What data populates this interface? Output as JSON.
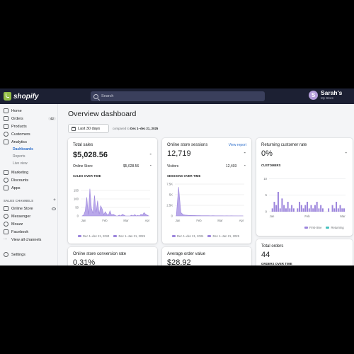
{
  "app": {
    "logo_text": "shopify",
    "search_placeholder": "Search",
    "store_initial": "S",
    "store_name": "Sarah's",
    "store_sub": "My Store"
  },
  "sidebar": {
    "items": [
      {
        "label": "Home"
      },
      {
        "label": "Orders",
        "badge": "42"
      },
      {
        "label": "Products"
      },
      {
        "label": "Customers"
      },
      {
        "label": "Analytics"
      }
    ],
    "analytics_sub": [
      "Dashboards",
      "Reports",
      "Live view"
    ],
    "items2": [
      {
        "label": "Marketing"
      },
      {
        "label": "Discounts"
      },
      {
        "label": "Apps"
      }
    ],
    "channels_header": "SALES CHANNELS",
    "channels": [
      {
        "label": "Online Store"
      },
      {
        "label": "Messenger"
      },
      {
        "label": "Mouzz"
      },
      {
        "label": "Facebook"
      }
    ],
    "view_all": "View all channels",
    "settings": "Settings"
  },
  "main": {
    "title": "Overview dashboard",
    "date_button": "Last 30 days",
    "compared_prefix": "compared to",
    "compared_range": "Dec 1–dec 21, 2025"
  },
  "cards": {
    "total_sales": {
      "title": "Total sales",
      "dash": "-",
      "value": "$5,028.56",
      "row_label": "Online Store",
      "row_value": "$5,028.56",
      "row_dash": "-",
      "caption": "SALES OVER TIME",
      "legend": [
        "Dec 1–dec 21, 2024",
        "Dec 1–Jan 21, 2025"
      ]
    },
    "sessions": {
      "title": "Online store sessions",
      "link": "View report",
      "value": "12,719",
      "dash": "-",
      "row_label": "Visitors",
      "row_value": "12,403",
      "row_dash": "-",
      "caption": "SESSIONS OVER TIME",
      "legend": [
        "Dec 1–dec 21, 2024",
        "Dec 1–Jan 21, 2025"
      ]
    },
    "returning": {
      "title": "Returning customer rate",
      "value": "0%",
      "dash": "-",
      "caption": "CUSTOMERS",
      "legend": [
        "First-time",
        "Returning"
      ]
    },
    "conversion": {
      "title": "Online store conversion rate",
      "value": "0.31%"
    },
    "aov": {
      "title": "Average order value",
      "value": "$28.92"
    },
    "total_orders": {
      "title": "Total orders",
      "value": "44",
      "caption": "ORDERS OVER TIME"
    }
  },
  "colors": {
    "topbar": "#1c2033",
    "accent": "#9c85dc",
    "link": "#2c6ecb",
    "teal": "#47c1bf"
  },
  "chart_data": [
    {
      "type": "area",
      "name": "sales",
      "ylim": [
        0,
        200
      ],
      "yticks": [
        "0",
        "50",
        "100",
        "150"
      ],
      "yticks_values": [
        0,
        50,
        100,
        150
      ],
      "xticks": [
        "Jan",
        "Feb",
        "Mar",
        "Apr"
      ],
      "values": [
        0,
        5,
        30,
        110,
        8,
        160,
        45,
        15,
        120,
        20,
        90,
        10,
        60,
        40,
        8,
        25,
        10,
        5,
        30,
        5,
        10,
        5,
        0,
        0,
        5,
        0,
        10,
        5,
        0,
        0,
        0,
        0,
        5,
        0,
        8,
        0,
        3,
        0,
        10,
        5,
        20,
        10,
        5,
        0
      ]
    },
    {
      "type": "area",
      "name": "sessions",
      "ylim": [
        0,
        8000
      ],
      "yticks": [
        "0",
        "2.5K",
        "5K",
        "7.5K"
      ],
      "yticks_values": [
        0,
        2500,
        5000,
        7500
      ],
      "xticks": [
        "Jan",
        "Feb",
        "Mar",
        "Apr"
      ],
      "values": [
        0,
        6800,
        800,
        300,
        200,
        150,
        120,
        100,
        90,
        80,
        70,
        60,
        50,
        60,
        50,
        40,
        50,
        40,
        30,
        40,
        30,
        20,
        30,
        20,
        30,
        20,
        20,
        10,
        20,
        10
      ]
    },
    {
      "type": "bar",
      "name": "customers",
      "ylim": [
        0,
        12
      ],
      "yticks": [
        "0",
        "5",
        "10"
      ],
      "yticks_values": [
        0,
        5,
        10
      ],
      "xticks": [
        "Jan",
        "Feb",
        "Mar"
      ],
      "values": [
        0,
        1,
        3,
        2,
        6,
        1,
        4,
        2,
        1,
        3,
        1,
        2,
        1,
        0,
        1,
        3,
        2,
        1,
        2,
        3,
        1,
        2,
        1,
        2,
        3,
        1,
        2,
        1,
        0,
        0,
        1,
        0,
        2,
        1,
        3,
        1,
        2,
        1,
        1
      ]
    }
  ]
}
